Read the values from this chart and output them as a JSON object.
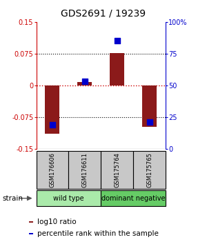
{
  "title": "GDS2691 / 19239",
  "samples": [
    "GSM176606",
    "GSM176611",
    "GSM175764",
    "GSM175765"
  ],
  "log10_ratio": [
    -0.115,
    0.008,
    0.077,
    -0.098
  ],
  "percentile_rank": [
    19,
    53,
    85,
    21
  ],
  "groups": [
    {
      "name": "wild type",
      "samples": [
        0,
        1
      ],
      "color": "#AAEAAA"
    },
    {
      "name": "dominant negative",
      "samples": [
        2,
        3
      ],
      "color": "#66CC66"
    }
  ],
  "group_label": "strain",
  "ylim_left": [
    -0.15,
    0.15
  ],
  "ylim_right": [
    0,
    100
  ],
  "yticks_left": [
    -0.15,
    -0.075,
    0,
    0.075,
    0.15
  ],
  "yticks_right": [
    0,
    25,
    50,
    75,
    100
  ],
  "ytick_labels_left": [
    "-0.15",
    "-0.075",
    "0",
    "0.075",
    "0.15"
  ],
  "ytick_labels_right": [
    "0",
    "25",
    "50",
    "75",
    "100%"
  ],
  "hlines_dotted": [
    -0.075,
    0.075
  ],
  "hline_red": 0,
  "bar_color": "#8B1A1A",
  "dot_color": "#0000CC",
  "bar_width": 0.45,
  "dot_size": 40,
  "bg_color": "#FFFFFF",
  "sample_box_color": "#C8C8C8",
  "left_axis_color": "#CC0000",
  "right_axis_color": "#0000CC",
  "title_fontsize": 10,
  "tick_fontsize": 7,
  "sample_fontsize": 6,
  "group_fontsize": 7,
  "legend_fontsize": 7.5
}
